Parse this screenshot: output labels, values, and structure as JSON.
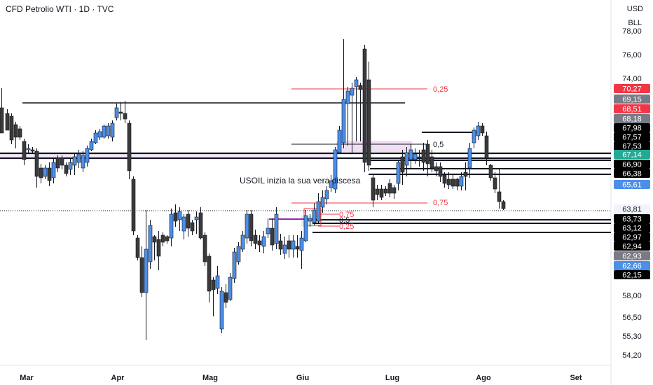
{
  "header": {
    "title": "CFD Petrolio WTI · 1D · TVC",
    "currency": "USD",
    "unit": "BLL"
  },
  "chart_data": {
    "type": "candlestick",
    "annotation": "USOIL inizia la sua vera discesa",
    "y_axis_ticks": [
      "78,00",
      "76,00",
      "74,00",
      "58,00",
      "56,50",
      "55,30",
      "54,20"
    ],
    "x_axis_ticks": [
      "Mar",
      "Apr",
      "Mag",
      "Giu",
      "Lug",
      "Ago",
      "Set"
    ],
    "price_labels": [
      {
        "text": "70,27",
        "bg": "#f23645",
        "fg": "#ffffff"
      },
      {
        "text": "69,15",
        "bg": "#787b86",
        "fg": "#ffffff"
      },
      {
        "text": "68,51",
        "bg": "#f23645",
        "fg": "#ffffff"
      },
      {
        "text": "68,18",
        "bg": "#787b86",
        "fg": "#ffffff"
      },
      {
        "text": "67,98",
        "bg": "#000000",
        "fg": "#ffffff"
      },
      {
        "text": "67,57",
        "bg": "#000000",
        "fg": "#ffffff"
      },
      {
        "text": "67,53",
        "bg": "#000000",
        "fg": "#ffffff"
      },
      {
        "text": "67,14",
        "bg": "#22ab94",
        "fg": "#ffffff"
      },
      {
        "text": "66,90",
        "bg": "#000000",
        "fg": "#ffffff"
      },
      {
        "text": "66,38",
        "bg": "#000000",
        "fg": "#ffffff"
      },
      {
        "text": "65,61",
        "bg": "#4c8ee8",
        "fg": "#ffffff"
      },
      {
        "text": "63,81",
        "bg": "#f0f3fa",
        "fg": "#131722"
      },
      {
        "text": "63,73",
        "bg": "#000000",
        "fg": "#ffffff"
      },
      {
        "text": "63,12",
        "bg": "#000000",
        "fg": "#ffffff"
      },
      {
        "text": "62,97",
        "bg": "#000000",
        "fg": "#ffffff"
      },
      {
        "text": "62,94",
        "bg": "#000000",
        "fg": "#ffffff"
      },
      {
        "text": "62,93",
        "bg": "#787b86",
        "fg": "#ffffff"
      },
      {
        "text": "62,66",
        "bg": "#4c8ee8",
        "fg": "#ffffff"
      },
      {
        "text": "62,15",
        "bg": "#000000",
        "fg": "#ffffff"
      }
    ],
    "fib_labels": [
      {
        "text": "0,25",
        "color": "#f23645"
      },
      {
        "text": "0,5",
        "color": "#131722"
      },
      {
        "text": "0,75",
        "color": "#f23645"
      },
      {
        "text": "0,75",
        "color": "#f23645"
      },
      {
        "text": "0,5",
        "color": "#131722"
      },
      {
        "text": "0,25",
        "color": "#f23645"
      }
    ],
    "colors": {
      "up": "#4c8ee8",
      "down": "#3a3a3a",
      "wick": "#131722",
      "fib": "#f23645",
      "purple": "#9c27b0"
    }
  }
}
